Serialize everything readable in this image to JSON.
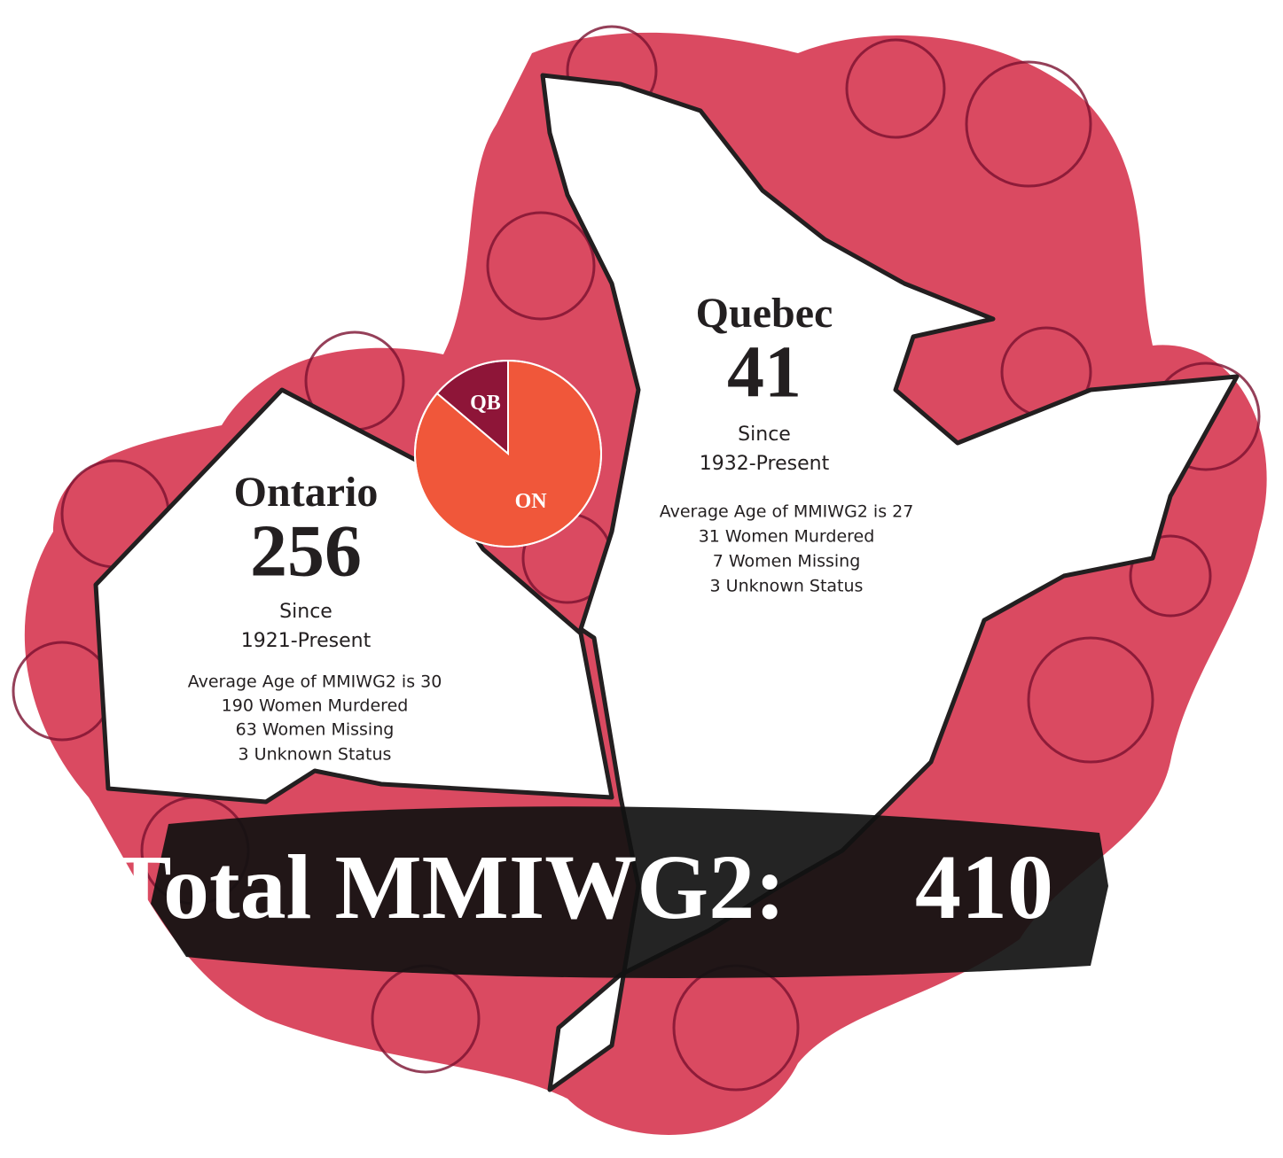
{
  "provinces": [
    {
      "name": "Ontario",
      "count": 256,
      "since": "Since",
      "period": "1921-Present",
      "details": [
        "Average Age of MMIWG2 is 30",
        "190 Women Murdered",
        "63 Women Missing",
        "3 Unknown Status"
      ],
      "pie_label": "ON",
      "color": "#f0573a"
    },
    {
      "name": "Quebec",
      "count": 41,
      "since": "Since",
      "period": "1932-Present",
      "details": [
        "Average Age of MMIWG2 is 27",
        "31 Women Murdered",
        "7 Women Missing",
        "3 Unknown Status"
      ],
      "pie_label": "QB",
      "color": "#8e1538"
    }
  ],
  "total": {
    "label": "Total MMIWG2:",
    "value": 410
  }
}
